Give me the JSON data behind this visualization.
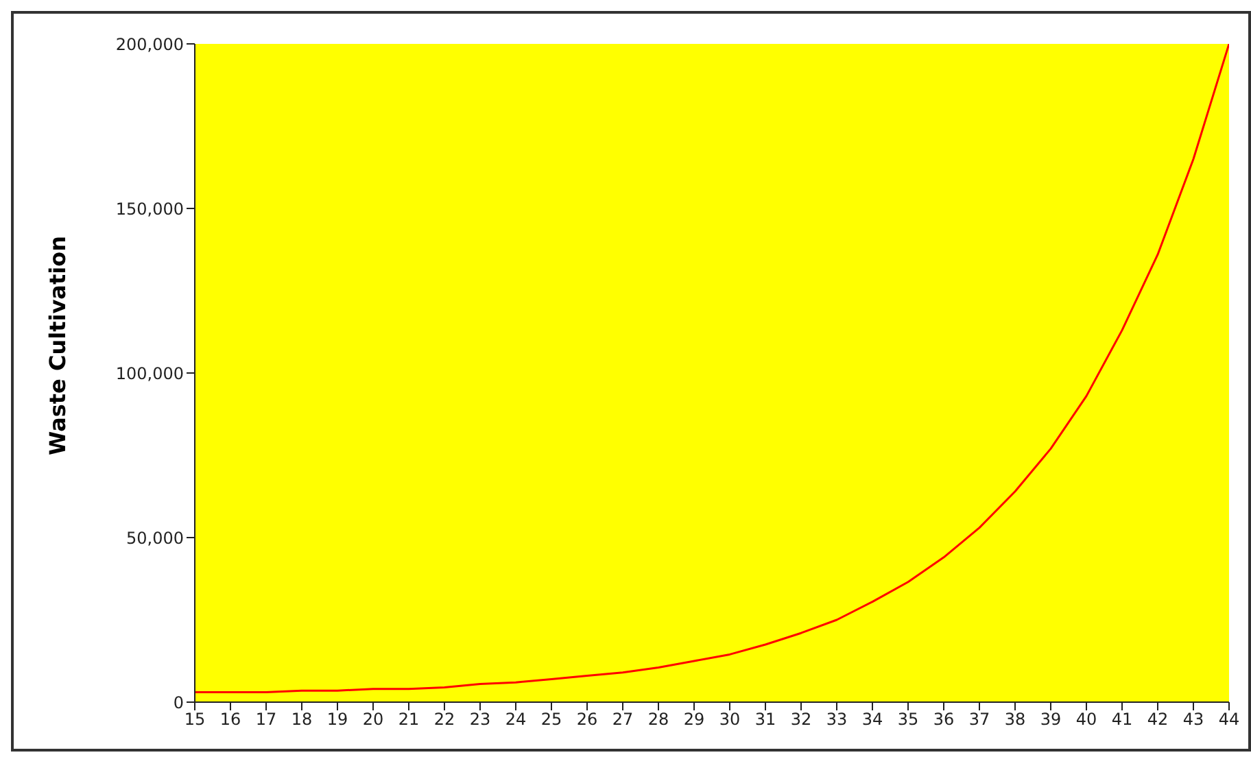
{
  "chart_data": {
    "type": "line",
    "ylabel": "Waste Cultivation",
    "categories": [
      "15",
      "16",
      "17",
      "18",
      "19",
      "20",
      "21",
      "22",
      "23",
      "24",
      "25",
      "26",
      "27",
      "28",
      "29",
      "30",
      "31",
      "32",
      "33",
      "34",
      "35",
      "36",
      "37",
      "38",
      "39",
      "40",
      "41",
      "42",
      "43",
      "44"
    ],
    "series": [
      {
        "color": "#ff0000",
        "values": [
          3000,
          3000,
          3000,
          3500,
          3500,
          4000,
          4000,
          4500,
          5500,
          6000,
          7000,
          8000,
          9000,
          10500,
          12500,
          14500,
          17500,
          21000,
          25000,
          30500,
          36500,
          44000,
          53000,
          64000,
          77000,
          93000,
          113000,
          136000,
          165000,
          200000
        ]
      }
    ],
    "ylim": [
      0,
      200000
    ],
    "yticks": [
      0,
      {
        "value": 50000,
        "label": "50,000"
      },
      {
        "value": 100000,
        "label": "100,000"
      },
      {
        "value": 150000,
        "label": "150,000"
      },
      {
        "value": 200000,
        "label": "200,000"
      }
    ],
    "grid": false,
    "legend": false,
    "marker": "none",
    "line_style": "solid"
  }
}
